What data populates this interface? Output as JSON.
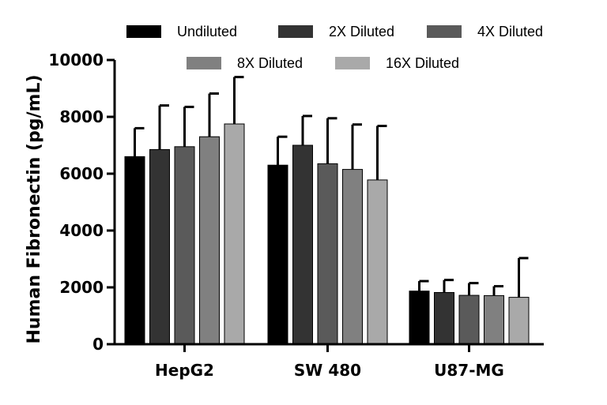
{
  "chart_data": {
    "type": "bar",
    "title": "",
    "xlabel": "",
    "ylabel": "Human Fibronectin (pg/mL)",
    "ylim": [
      0,
      10000
    ],
    "yticks": [
      0,
      2000,
      4000,
      6000,
      8000,
      10000
    ],
    "ytick_labels": [
      "0",
      "2000",
      "4000",
      "6000",
      "8000",
      "10000"
    ],
    "categories": [
      "HepG2",
      "SW 480",
      "U87-MG"
    ],
    "grid": false,
    "legend_position": "top",
    "series": [
      {
        "name": "Undiluted",
        "color": "#000000",
        "values": [
          6600,
          6300,
          1870
        ],
        "errors": [
          1000,
          1000,
          350
        ]
      },
      {
        "name": "2X Diluted",
        "color": "#333333",
        "values": [
          6850,
          7000,
          1820
        ],
        "errors": [
          1550,
          1030,
          440
        ]
      },
      {
        "name": "4X Diluted",
        "color": "#5a5a5a",
        "values": [
          6950,
          6350,
          1720
        ],
        "errors": [
          1400,
          1600,
          430
        ]
      },
      {
        "name": "8X Diluted",
        "color": "#808080",
        "values": [
          7300,
          6150,
          1710
        ],
        "errors": [
          1520,
          1580,
          330
        ]
      },
      {
        "name": "16X Diluted",
        "color": "#a9a9a9",
        "values": [
          7750,
          5780,
          1650
        ],
        "errors": [
          1650,
          1900,
          1380
        ]
      }
    ]
  }
}
